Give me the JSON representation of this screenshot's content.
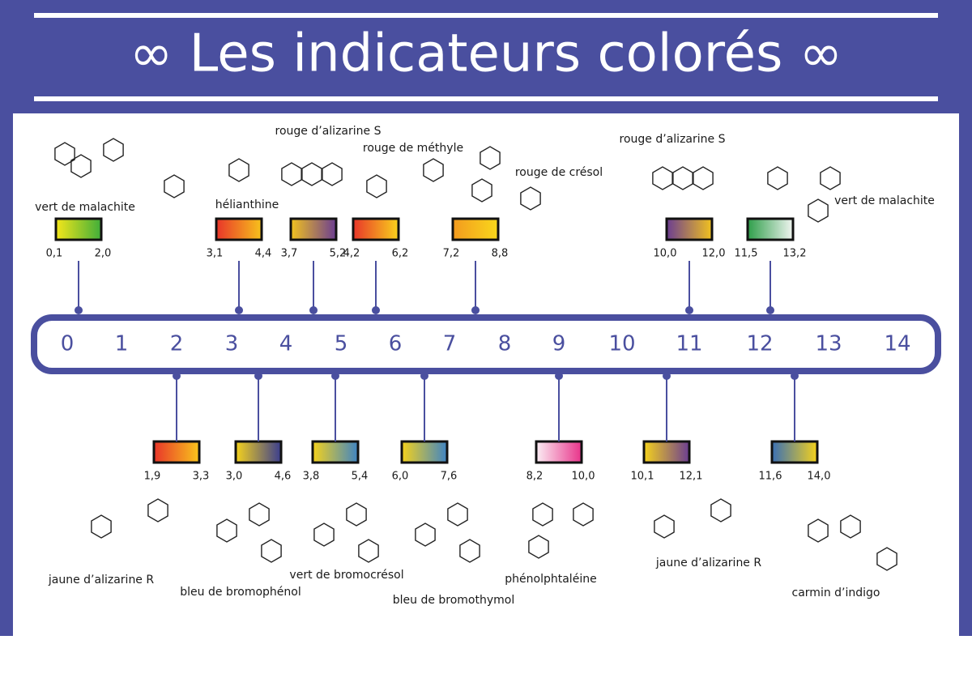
{
  "header": {
    "title": "∞ Les indicateurs colorés ∞"
  },
  "scale": [
    0,
    1,
    2,
    3,
    4,
    5,
    6,
    7,
    8,
    9,
    10,
    11,
    12,
    13,
    14
  ],
  "top_indicators": [
    {
      "name": "vert de malachite",
      "low": "0,1",
      "high": "2,0",
      "colors": [
        "#f5e61a",
        "#3fae3a"
      ]
    },
    {
      "name": "hélianthine",
      "low": "3,1",
      "high": "4,4",
      "colors": [
        "#e8352a",
        "#f7c21c"
      ]
    },
    {
      "name": "rouge d’alizarine S",
      "low": "3,7",
      "high": "5,2",
      "colors": [
        "#f1c21f",
        "#6b3d91"
      ]
    },
    {
      "name": "rouge de méthyle",
      "low": "4,2",
      "high": "6,2",
      "colors": [
        "#e8352a",
        "#f9d21c"
      ]
    },
    {
      "name": "rouge de crésol",
      "low": "7,2",
      "high": "8,8",
      "colors": [
        "#f39a1e",
        "#f9d81c"
      ]
    },
    {
      "name": "rouge d’alizarine S",
      "low": "10,0",
      "high": "12,0",
      "colors": [
        "#6b3d91",
        "#f1c21f"
      ]
    },
    {
      "name": "vert de malachite",
      "low": "11,5",
      "high": "13,2",
      "colors": [
        "#2e9e4a",
        "#f1f5f1"
      ]
    }
  ],
  "bottom_indicators": [
    {
      "name": "jaune d’alizarine R",
      "low": "1,9",
      "high": "3,3",
      "colors": [
        "#e8352a",
        "#f9c51c"
      ]
    },
    {
      "name": "bleu de bromophénol",
      "low": "3,0",
      "high": "4,6",
      "colors": [
        "#f5d21c",
        "#3a3d8f"
      ]
    },
    {
      "name": "vert de bromocrésol",
      "low": "3,8",
      "high": "5,4",
      "colors": [
        "#f5d21c",
        "#3f84c4"
      ]
    },
    {
      "name": "bleu de bromothymol",
      "low": "6,0",
      "high": "7,6",
      "colors": [
        "#f5d21c",
        "#3f84c4"
      ]
    },
    {
      "name": "phénolphtaléine",
      "low": "8,2",
      "high": "10,0",
      "colors": [
        "#fbeef4",
        "#e8338a"
      ]
    },
    {
      "name": "jaune d’alizarine R",
      "low": "10,1",
      "high": "12,1",
      "colors": [
        "#f5d21c",
        "#6b3d91"
      ]
    },
    {
      "name": "carmin d’indigo",
      "low": "11,6",
      "high": "14,0",
      "colors": [
        "#3a6fb5",
        "#f5d21c"
      ]
    }
  ]
}
